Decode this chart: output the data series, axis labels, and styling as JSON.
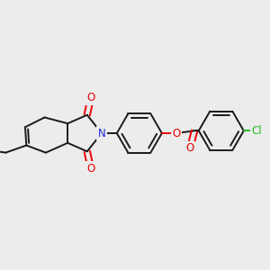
{
  "background_color": "#ececec",
  "bond_color": "#1a1a1a",
  "bond_width": 1.4,
  "atom_colors": {
    "O": "#ee0000",
    "N": "#2222dd",
    "Cl": "#22bb22",
    "C": "#1a1a1a"
  },
  "font_size_atom": 8.5
}
